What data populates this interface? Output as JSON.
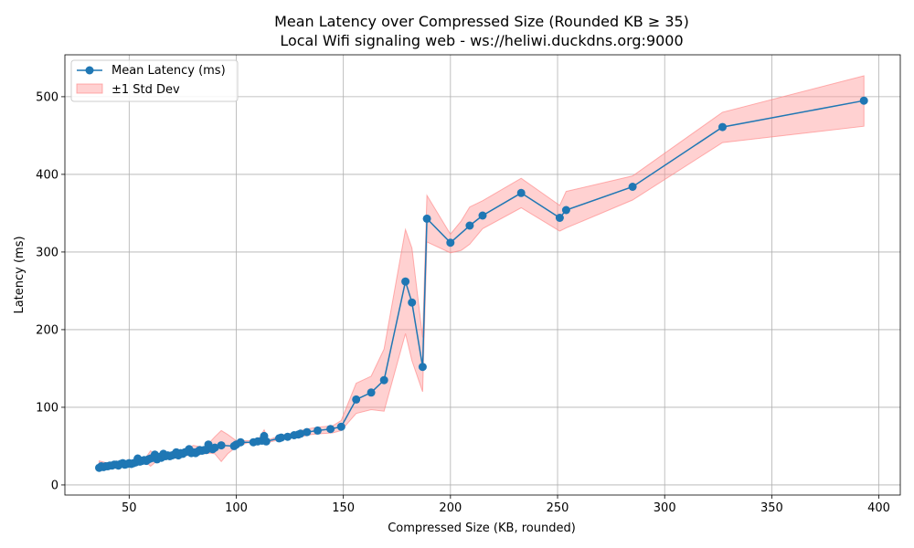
{
  "chart_data": {
    "type": "line",
    "title": "Mean Latency over Compressed Size (Rounded KB ≥ 35)",
    "subtitle": "Local Wifi signaling web - ws://heliwi.duckdns.org:9000",
    "xlabel": "Compressed Size (KB, rounded)",
    "ylabel": "Latency (ms)",
    "xlim": [
      20,
      410
    ],
    "ylim": [
      -13,
      554
    ],
    "xticks": [
      50,
      100,
      150,
      200,
      250,
      300,
      350,
      400
    ],
    "yticks": [
      0,
      100,
      200,
      300,
      400,
      500
    ],
    "grid": true,
    "legend_position": "top-left",
    "legend": {
      "line_label": "Mean Latency (ms)",
      "band_label": "±1 Std Dev"
    },
    "colors": {
      "line": "#1f77b4",
      "band_fill": "#ff9999",
      "band_edge": "#ff7f7f"
    },
    "series": [
      {
        "name": "Mean Latency (ms)",
        "x": [
          36,
          37,
          38,
          39,
          40,
          41,
          42,
          43,
          44,
          45,
          46,
          47,
          48,
          49,
          50,
          51,
          52,
          53,
          54,
          55,
          56,
          57,
          58,
          59,
          60,
          61,
          62,
          63,
          64,
          65,
          66,
          67,
          68,
          69,
          70,
          71,
          72,
          73,
          74,
          75,
          76,
          77,
          78,
          79,
          80,
          81,
          82,
          83,
          84,
          85,
          86,
          87,
          88,
          89,
          90,
          93,
          99,
          100,
          102,
          108,
          110,
          112,
          113,
          114,
          120,
          121,
          124,
          127,
          129,
          130,
          133,
          138,
          144,
          149,
          156,
          163,
          169,
          179,
          182,
          187,
          189,
          200,
          209,
          215,
          233,
          251,
          254,
          285,
          327,
          393
        ],
        "y": [
          22,
          24,
          23,
          24,
          24,
          25,
          25,
          26,
          26,
          25,
          27,
          28,
          26,
          27,
          28,
          27,
          28,
          29,
          34,
          30,
          31,
          32,
          31,
          33,
          34,
          35,
          39,
          33,
          36,
          35,
          40,
          37,
          38,
          37,
          38,
          39,
          42,
          38,
          41,
          40,
          42,
          43,
          46,
          41,
          42,
          41,
          43,
          45,
          44,
          45,
          45,
          52,
          47,
          46,
          48,
          51,
          50,
          52,
          55,
          55,
          56,
          57,
          63,
          56,
          60,
          61,
          62,
          64,
          65,
          66,
          68,
          70,
          72,
          75,
          110,
          119,
          135,
          262,
          235,
          152,
          343,
          312,
          334,
          347,
          376,
          344,
          354,
          384,
          461,
          495
        ]
      }
    ],
    "band": {
      "x": [
        36,
        40,
        45,
        50,
        55,
        58,
        60,
        63,
        65,
        70,
        75,
        80,
        85,
        88,
        90,
        93,
        96,
        100,
        105,
        110,
        113,
        115,
        120,
        125,
        130,
        135,
        140,
        145,
        149,
        156,
        163,
        169,
        179,
        182,
        187,
        189,
        200,
        205,
        209,
        215,
        233,
        251,
        254,
        285,
        327,
        393
      ],
      "lower": [
        18,
        21,
        22,
        25,
        27,
        29,
        24,
        31,
        33,
        35,
        37,
        39,
        40,
        41,
        40,
        30,
        40,
        49,
        54,
        54,
        56,
        55,
        58,
        60,
        62,
        65,
        66,
        67,
        70,
        92,
        97,
        95,
        195,
        160,
        120,
        313,
        299,
        302,
        310,
        330,
        357,
        327,
        331,
        367,
        441,
        462
      ],
      "upper": [
        31,
        28,
        30,
        30,
        33,
        36,
        44,
        36,
        42,
        42,
        44,
        51,
        48,
        56,
        62,
        70,
        65,
        57,
        57,
        57,
        71,
        58,
        63,
        66,
        70,
        73,
        75,
        76,
        83,
        131,
        140,
        175,
        329,
        305,
        190,
        373,
        323,
        340,
        358,
        366,
        395,
        360,
        378,
        398,
        480,
        527
      ]
    }
  }
}
